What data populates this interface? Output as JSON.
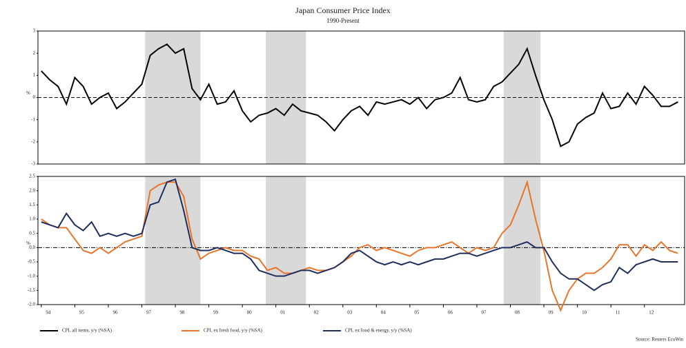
{
  "chart_data": [
    {
      "type": "line",
      "title": "Japan Consumer Price Index",
      "subtitle": "1990-Present",
      "y_label": "%",
      "x": [
        1994,
        1994.25,
        1994.5,
        1994.75,
        1995,
        1995.25,
        1995.5,
        1995.75,
        1996,
        1996.25,
        1996.5,
        1996.75,
        1997,
        1997.25,
        1997.5,
        1997.75,
        1998,
        1998.25,
        1998.5,
        1998.75,
        1999,
        1999.25,
        1999.5,
        1999.75,
        2000,
        2000.25,
        2000.5,
        2000.75,
        2001,
        2001.25,
        2001.5,
        2001.75,
        2002,
        2002.25,
        2002.5,
        2002.75,
        2003,
        2003.25,
        2003.5,
        2003.75,
        2004,
        2004.25,
        2004.5,
        2004.75,
        2005,
        2005.25,
        2005.5,
        2005.75,
        2006,
        2006.25,
        2006.5,
        2006.75,
        2007,
        2007.25,
        2007.5,
        2007.75,
        2008,
        2008.25,
        2008.5,
        2008.75,
        2009,
        2009.25,
        2009.5,
        2009.75,
        2010,
        2010.25,
        2010.5,
        2010.75,
        2011,
        2011.25,
        2011.5,
        2011.75,
        2012,
        2012.25,
        2012.5,
        2012.75,
        2013
      ],
      "xlim": [
        1993.9,
        2013.2
      ],
      "ylim": [
        -3,
        3
      ],
      "yticks": [
        -3,
        -2,
        -1,
        0,
        1,
        2,
        3
      ],
      "shaded_periods": [
        [
          1997.1,
          1998.75
        ],
        [
          2000.7,
          2001.9
        ],
        [
          2007.8,
          2008.9
        ]
      ],
      "series": [
        {
          "name": "CPI, all items, y/y (%SA)",
          "color": "#000000",
          "values": [
            1.2,
            0.8,
            0.5,
            -0.3,
            0.9,
            0.5,
            -0.3,
            0.0,
            0.2,
            -0.5,
            -0.2,
            0.2,
            0.6,
            1.9,
            2.2,
            2.4,
            2.0,
            2.2,
            0.4,
            -0.1,
            0.6,
            -0.3,
            -0.2,
            0.3,
            -0.6,
            -1.1,
            -0.8,
            -0.7,
            -0.5,
            -0.8,
            -0.3,
            -0.6,
            -0.7,
            -0.8,
            -1.1,
            -1.5,
            -1.0,
            -0.6,
            -0.4,
            -0.8,
            -0.2,
            -0.3,
            -0.2,
            -0.1,
            -0.3,
            0.0,
            -0.5,
            -0.1,
            0.0,
            0.2,
            0.9,
            -0.1,
            -0.2,
            -0.1,
            0.5,
            0.7,
            1.1,
            1.5,
            2.2,
            1.0,
            -0.1,
            -1.0,
            -2.2,
            -2.0,
            -1.2,
            -0.9,
            -0.7,
            0.2,
            -0.5,
            -0.4,
            0.2,
            -0.3,
            0.5,
            0.1,
            -0.4,
            -0.4,
            -0.2
          ]
        }
      ]
    },
    {
      "type": "line",
      "y_label": "%",
      "source": "Source: Reuters EcoWin",
      "x": [
        1994,
        1994.25,
        1994.5,
        1994.75,
        1995,
        1995.25,
        1995.5,
        1995.75,
        1996,
        1996.25,
        1996.5,
        1996.75,
        1997,
        1997.25,
        1997.5,
        1997.75,
        1998,
        1998.25,
        1998.5,
        1998.75,
        1999,
        1999.25,
        1999.5,
        1999.75,
        2000,
        2000.25,
        2000.5,
        2000.75,
        2001,
        2001.25,
        2001.5,
        2001.75,
        2002,
        2002.25,
        2002.5,
        2002.75,
        2003,
        2003.25,
        2003.5,
        2003.75,
        2004,
        2004.25,
        2004.5,
        2004.75,
        2005,
        2005.25,
        2005.5,
        2005.75,
        2006,
        2006.25,
        2006.5,
        2006.75,
        2007,
        2007.25,
        2007.5,
        2007.75,
        2008,
        2008.25,
        2008.5,
        2008.75,
        2009,
        2009.25,
        2009.5,
        2009.75,
        2010,
        2010.25,
        2010.5,
        2010.75,
        2011,
        2011.25,
        2011.5,
        2011.75,
        2012,
        2012.25,
        2012.5,
        2012.75,
        2013
      ],
      "xlim": [
        1993.9,
        2013.2
      ],
      "xticks": [
        {
          "value": 1994,
          "label": "94"
        },
        {
          "value": 1995,
          "label": "95"
        },
        {
          "value": 1996,
          "label": "96"
        },
        {
          "value": 1997,
          "label": "97"
        },
        {
          "value": 1998,
          "label": "98"
        },
        {
          "value": 1999,
          "label": "99"
        },
        {
          "value": 2000,
          "label": "00"
        },
        {
          "value": 2001,
          "label": "01"
        },
        {
          "value": 2002,
          "label": "02"
        },
        {
          "value": 2003,
          "label": "03"
        },
        {
          "value": 2004,
          "label": "04"
        },
        {
          "value": 2005,
          "label": "05"
        },
        {
          "value": 2006,
          "label": "06"
        },
        {
          "value": 2007,
          "label": "07"
        },
        {
          "value": 2008,
          "label": "08"
        },
        {
          "value": 2009,
          "label": "09"
        },
        {
          "value": 2010,
          "label": "10"
        },
        {
          "value": 2011,
          "label": "11"
        },
        {
          "value": 2012,
          "label": "12"
        }
      ],
      "ylim": [
        -2.0,
        2.5
      ],
      "yticks": [
        {
          "value": -2,
          "label": "-2.0"
        },
        -1.5,
        {
          "value": -1,
          "label": "-1.0"
        },
        -0.5,
        {
          "value": 0,
          "label": "0.0"
        },
        0.5,
        {
          "value": 1,
          "label": "1.0"
        },
        1.5,
        {
          "value": 2,
          "label": "2.0"
        },
        2.5
      ],
      "shaded_periods": [
        [
          1997.1,
          1998.75
        ],
        [
          2000.7,
          2001.9
        ],
        [
          2007.8,
          2008.9
        ]
      ],
      "series": [
        {
          "name": "CPI, ex fresh food, y/y (%SA)",
          "color": "#e8742a",
          "values": [
            1.0,
            0.8,
            0.7,
            0.7,
            0.3,
            -0.1,
            -0.2,
            0.0,
            -0.2,
            0.0,
            0.2,
            0.3,
            0.4,
            2.0,
            2.2,
            2.3,
            2.3,
            1.8,
            0.3,
            -0.4,
            -0.2,
            -0.1,
            0.0,
            -0.1,
            -0.1,
            -0.3,
            -0.4,
            -0.8,
            -0.7,
            -0.9,
            -0.9,
            -0.8,
            -0.7,
            -0.8,
            -0.8,
            -0.7,
            -0.5,
            -0.3,
            0.0,
            0.1,
            -0.1,
            0.0,
            -0.1,
            -0.2,
            -0.3,
            -0.1,
            0.0,
            0.0,
            0.1,
            0.2,
            0.0,
            -0.2,
            0.0,
            -0.1,
            0.0,
            0.5,
            0.8,
            1.5,
            2.3,
            1.0,
            -0.1,
            -1.5,
            -2.2,
            -1.5,
            -1.1,
            -0.9,
            -0.9,
            -0.7,
            -0.4,
            0.1,
            0.1,
            -0.3,
            0.1,
            -0.1,
            0.2,
            -0.1,
            -0.2
          ]
        },
        {
          "name": "CPI, ex food & energy, y/y (%SA)",
          "color": "#1f2d5c",
          "values": [
            0.9,
            0.8,
            0.7,
            1.2,
            0.8,
            0.6,
            0.9,
            0.4,
            0.5,
            0.4,
            0.5,
            0.4,
            0.5,
            1.5,
            1.6,
            2.3,
            2.4,
            1.3,
            0.0,
            -0.1,
            -0.1,
            0.0,
            -0.1,
            -0.2,
            -0.2,
            -0.4,
            -0.8,
            -0.9,
            -1.0,
            -1.0,
            -0.9,
            -0.8,
            -0.8,
            -0.9,
            -0.8,
            -0.7,
            -0.5,
            -0.2,
            -0.1,
            -0.3,
            -0.5,
            -0.6,
            -0.5,
            -0.6,
            -0.5,
            -0.6,
            -0.5,
            -0.4,
            -0.4,
            -0.3,
            -0.2,
            -0.2,
            -0.3,
            -0.2,
            -0.1,
            0.0,
            0.0,
            0.1,
            0.2,
            0.0,
            0.0,
            -0.5,
            -0.9,
            -1.1,
            -1.1,
            -1.3,
            -1.5,
            -1.3,
            -1.2,
            -0.7,
            -0.9,
            -0.6,
            -0.5,
            -0.4,
            -0.5,
            -0.5,
            -0.5
          ]
        }
      ]
    }
  ]
}
